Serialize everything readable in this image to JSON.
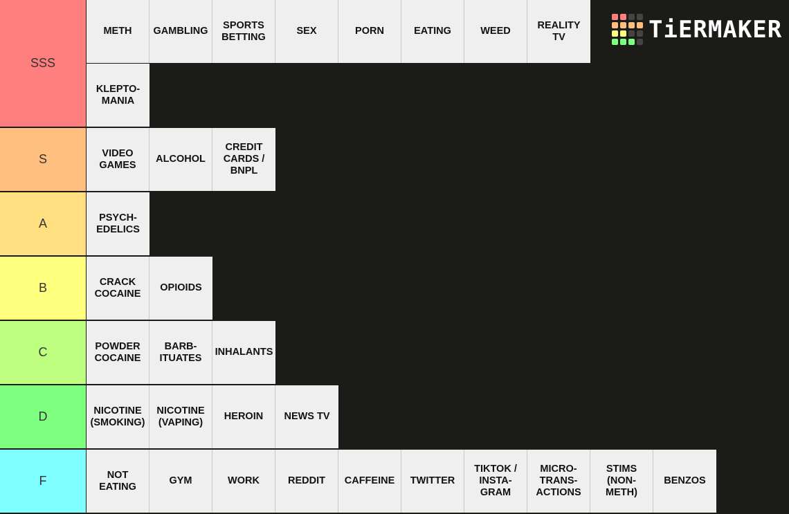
{
  "logo": {
    "text": "TiERMAKER",
    "grid_colors": [
      "#ff7f7f",
      "#ff7f7f",
      "#444444",
      "#444444",
      "#ffbf7f",
      "#ffbf7f",
      "#ffbf7f",
      "#ffbf7f",
      "#ffff7f",
      "#ffff7f",
      "#444444",
      "#444444",
      "#7fff7f",
      "#7fff7f",
      "#7fff7f",
      "#444444"
    ]
  },
  "tiers": [
    {
      "label": "SSS",
      "color": "#ff7f7f",
      "items": [
        "METH",
        "GAMBLING",
        "SPORTS\nBETTING",
        "SEX",
        "PORN",
        "EATING",
        "WEED",
        "REALITY\nTV",
        "KLEPTO-\nMANIA"
      ]
    },
    {
      "label": "S",
      "color": "#ffbf7f",
      "items": [
        "VIDEO\nGAMES",
        "ALCOHOL",
        "CREDIT\nCARDS /\nBNPL"
      ]
    },
    {
      "label": "A",
      "color": "#ffdf7f",
      "items": [
        "PSYCH-\nEDELICS"
      ]
    },
    {
      "label": "B",
      "color": "#ffff7f",
      "items": [
        "CRACK\nCOCAINE",
        "OPIOIDS"
      ]
    },
    {
      "label": "C",
      "color": "#bfff7f",
      "items": [
        "POWDER\nCOCAINE",
        "BARB-\nITUATES",
        "INHALANTS"
      ]
    },
    {
      "label": "D",
      "color": "#7fff7f",
      "items": [
        "NICOTINE\n(SMOKING)",
        "NICOTINE\n(VAPING)",
        "HEROIN",
        "NEWS TV"
      ]
    },
    {
      "label": "F",
      "color": "#7fffff",
      "items": [
        "NOT\nEATING",
        "GYM",
        "WORK",
        "REDDIT",
        "CAFFEINE",
        "TWITTER",
        "TIKTOK /\nINSTA-\nGRAM",
        "MICRO-\nTRANS-\nACTIONS",
        "STIMS\n(NON-\nMETH)",
        "BENZOS"
      ]
    }
  ]
}
